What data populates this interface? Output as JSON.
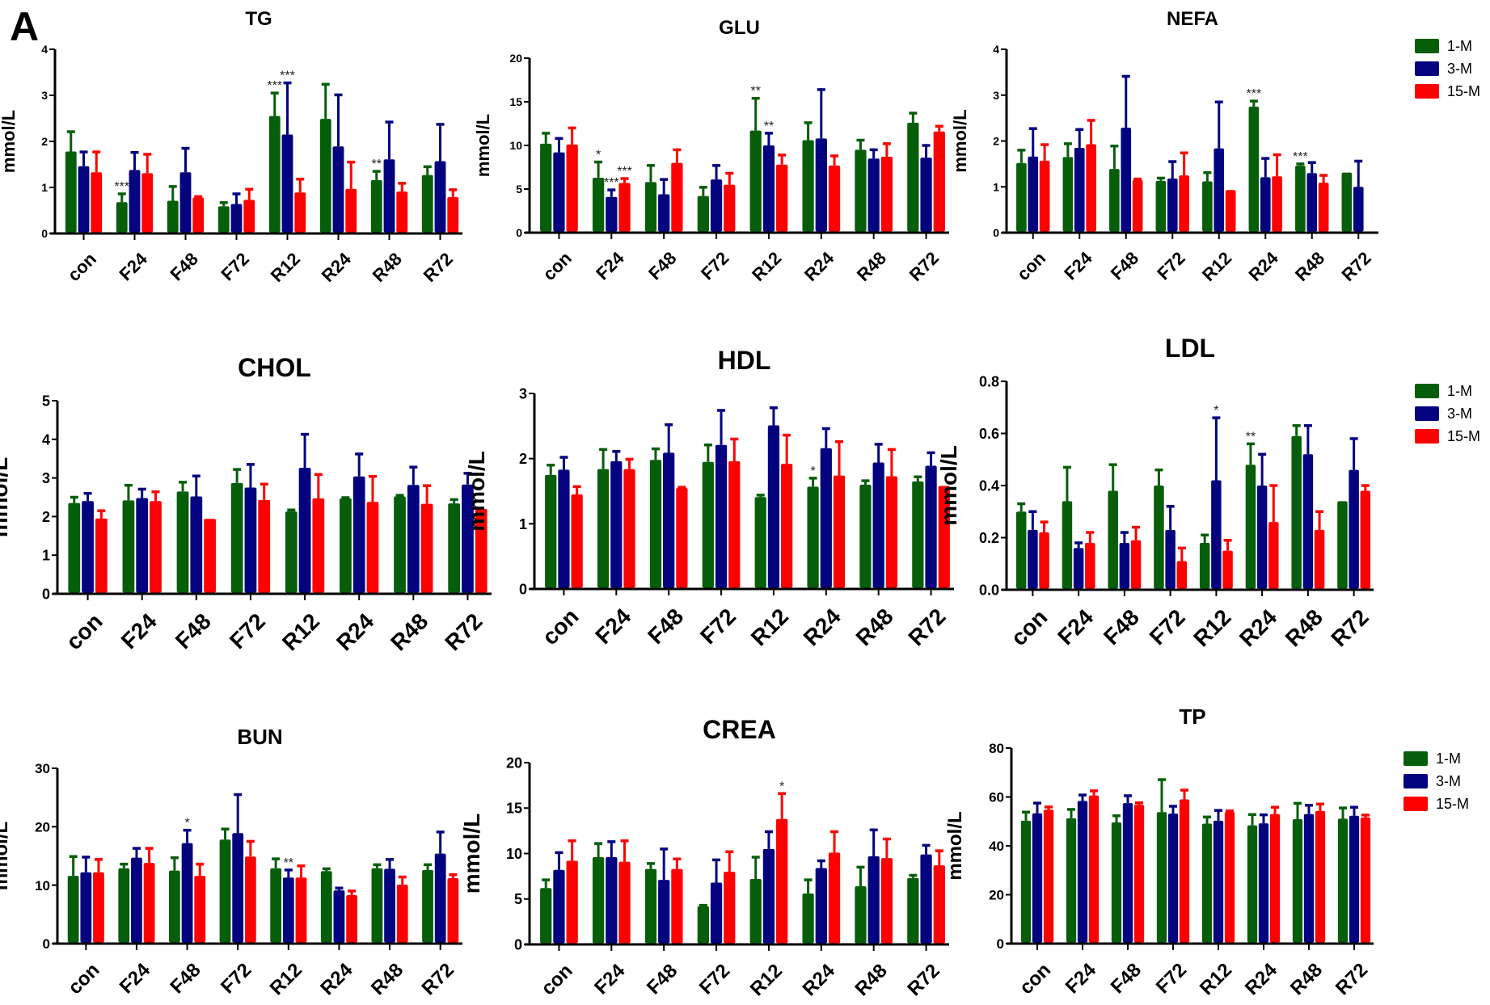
{
  "figure": {
    "panel_label": "A",
    "legend": [
      {
        "label": "1-M",
        "color": "#065e0b"
      },
      {
        "label": "3-M",
        "color": "#03037f"
      },
      {
        "label": "15-M",
        "color": "#fe0000"
      }
    ]
  },
  "chart_data": [
    {
      "type": "bar",
      "title": "TG",
      "ylabel": "mmol/L",
      "xlabel": "",
      "ylim": [
        0,
        4
      ],
      "yticks": [
        0,
        1,
        2,
        3,
        4
      ],
      "categories": [
        "con",
        "F24",
        "F48",
        "F72",
        "R12",
        "R24",
        "R48",
        "R72"
      ],
      "series": [
        {
          "name": "1-M",
          "values": [
            1.78,
            0.68,
            0.71,
            0.59,
            2.55,
            2.49,
            1.16,
            1.27
          ],
          "errors": [
            0.43,
            0.18,
            0.31,
            0.08,
            0.5,
            0.75,
            0.19,
            0.18
          ]
        },
        {
          "name": "3-M",
          "values": [
            1.46,
            1.38,
            1.33,
            0.64,
            2.15,
            1.89,
            1.61,
            1.57
          ],
          "errors": [
            0.31,
            0.38,
            0.52,
            0.22,
            1.12,
            1.12,
            0.81,
            0.8
          ]
        },
        {
          "name": "15-M",
          "values": [
            1.33,
            1.31,
            0.78,
            0.73,
            0.89,
            0.97,
            0.91,
            0.79
          ],
          "errors": [
            0.44,
            0.41,
            0.02,
            0.23,
            0.29,
            0.58,
            0.18,
            0.16
          ]
        }
      ],
      "annotations": [
        {
          "category": "F24",
          "series": "1-M",
          "text": "***"
        },
        {
          "category": "R12",
          "series": "1-M",
          "text": "***"
        },
        {
          "category": "R12",
          "series": "3-M",
          "text": "***"
        },
        {
          "category": "R48",
          "series": "1-M",
          "text": "**"
        }
      ],
      "legend": false
    },
    {
      "type": "bar",
      "title": "GLU",
      "ylabel": "mmol/L",
      "xlabel": "",
      "ylim": [
        0,
        20
      ],
      "yticks": [
        0,
        5,
        10,
        15,
        20
      ],
      "categories": [
        "con",
        "F24",
        "F48",
        "F72",
        "R12",
        "R24",
        "R48",
        "R72"
      ],
      "series": [
        {
          "name": "1-M",
          "values": [
            10.2,
            6.3,
            5.8,
            4.2,
            11.7,
            10.6,
            9.5,
            12.6
          ],
          "errors": [
            1.2,
            1.8,
            1.9,
            1.0,
            3.7,
            2.0,
            1.1,
            1.1
          ]
        },
        {
          "name": "3-M",
          "values": [
            9.2,
            4.1,
            4.4,
            6.1,
            10.0,
            10.8,
            8.5,
            8.6
          ],
          "errors": [
            1.6,
            0.8,
            1.7,
            1.6,
            1.4,
            5.6,
            1.0,
            1.4
          ]
        },
        {
          "name": "15-M",
          "values": [
            10.1,
            5.7,
            8.0,
            5.5,
            7.8,
            7.7,
            8.7,
            11.6
          ],
          "errors": [
            1.9,
            0.5,
            1.5,
            1.3,
            1.1,
            1.1,
            1.5,
            0.6
          ]
        }
      ],
      "annotations": [
        {
          "category": "F24",
          "series": "1-M",
          "text": "*"
        },
        {
          "category": "F24",
          "series": "3-M",
          "text": "***"
        },
        {
          "category": "F24",
          "series": "15-M",
          "text": "***"
        },
        {
          "category": "R12",
          "series": "1-M",
          "text": "**"
        },
        {
          "category": "R12",
          "series": "3-M",
          "text": "**"
        }
      ],
      "legend": false
    },
    {
      "type": "bar",
      "title": "NEFA",
      "ylabel": "mmol/L",
      "xlabel": "",
      "ylim": [
        0,
        4
      ],
      "yticks": [
        0,
        1,
        2,
        3,
        4
      ],
      "categories": [
        "con",
        "F24",
        "F48",
        "F72",
        "R12",
        "R24",
        "R48",
        "R72"
      ],
      "series": [
        {
          "name": "1-M",
          "values": [
            1.52,
            1.65,
            1.39,
            1.13,
            1.12,
            2.75,
            1.46,
            1.31
          ],
          "errors": [
            0.28,
            0.29,
            0.5,
            0.06,
            0.19,
            0.12,
            0.04,
            0.0
          ]
        },
        {
          "name": "3-M",
          "values": [
            1.66,
            1.85,
            2.29,
            1.18,
            1.84,
            1.21,
            1.3,
            1.0
          ],
          "errors": [
            0.61,
            0.4,
            1.12,
            0.37,
            1.01,
            0.41,
            0.23,
            0.56
          ]
        },
        {
          "name": "15-M",
          "values": [
            1.57,
            1.93,
            1.15,
            1.25,
            0.93,
            1.23,
            1.09,
            null
          ],
          "errors": [
            0.35,
            0.52,
            0.02,
            0.49,
            0.0,
            0.47,
            0.16,
            null
          ]
        }
      ],
      "annotations": [
        {
          "category": "R24",
          "series": "1-M",
          "text": "***"
        },
        {
          "category": "R48",
          "series": "1-M",
          "text": "***"
        }
      ],
      "legend": true
    },
    {
      "type": "bar",
      "title": "CHOL",
      "ylabel": "mmol/L",
      "xlabel": "",
      "ylim": [
        0,
        5
      ],
      "yticks": [
        0,
        1,
        2,
        3,
        4,
        5
      ],
      "categories": [
        "con",
        "F24",
        "F48",
        "F72",
        "R12",
        "R24",
        "R48",
        "R72"
      ],
      "series": [
        {
          "name": "1-M",
          "values": [
            2.35,
            2.42,
            2.65,
            2.87,
            2.13,
            2.47,
            2.52,
            2.34
          ],
          "errors": [
            0.15,
            0.39,
            0.24,
            0.35,
            0.04,
            0.02,
            0.03,
            0.1
          ]
        },
        {
          "name": "3-M",
          "values": [
            2.4,
            2.48,
            2.52,
            2.75,
            3.26,
            3.04,
            2.82,
            2.83
          ],
          "errors": [
            0.2,
            0.23,
            0.53,
            0.6,
            0.87,
            0.58,
            0.46,
            0.29
          ]
        },
        {
          "name": "15-M",
          "values": [
            1.95,
            2.4,
            1.94,
            2.43,
            2.47,
            2.38,
            2.33,
            2.2
          ],
          "errors": [
            0.2,
            0.24,
            0.0,
            0.41,
            0.62,
            0.66,
            0.47,
            0.0
          ]
        }
      ],
      "annotations": [],
      "legend": false
    },
    {
      "type": "bar",
      "title": "HDL",
      "ylabel": "mmol/L",
      "xlabel": "",
      "ylim": [
        0,
        3
      ],
      "yticks": [
        0,
        1,
        2,
        3
      ],
      "categories": [
        "con",
        "F24",
        "F48",
        "F72",
        "R12",
        "R24",
        "R48",
        "R72"
      ],
      "series": [
        {
          "name": "1-M",
          "values": [
            1.75,
            1.84,
            1.98,
            1.95,
            1.41,
            1.57,
            1.6,
            1.65
          ],
          "errors": [
            0.15,
            0.3,
            0.17,
            0.26,
            0.03,
            0.13,
            0.06,
            0.07
          ]
        },
        {
          "name": "3-M",
          "values": [
            1.83,
            1.96,
            2.09,
            2.21,
            2.51,
            2.16,
            1.94,
            1.89
          ],
          "errors": [
            0.19,
            0.15,
            0.43,
            0.53,
            0.27,
            0.3,
            0.28,
            0.2
          ]
        },
        {
          "name": "15-M",
          "values": [
            1.45,
            1.84,
            1.55,
            1.96,
            1.92,
            1.74,
            1.73,
            1.58
          ],
          "errors": [
            0.12,
            0.15,
            0.01,
            0.34,
            0.44,
            0.52,
            0.41,
            0.0
          ]
        }
      ],
      "annotations": [
        {
          "category": "R24",
          "series": "1-M",
          "text": "*"
        }
      ],
      "legend": false
    },
    {
      "type": "bar",
      "title": "LDL",
      "ylabel": "mmol/L",
      "xlabel": "",
      "ylim": [
        0,
        0.8
      ],
      "yticks": [
        0.0,
        0.2,
        0.4,
        0.6,
        0.8
      ],
      "categories": [
        "con",
        "F24",
        "F48",
        "F72",
        "R12",
        "R24",
        "R48",
        "R72"
      ],
      "series": [
        {
          "name": "1-M",
          "values": [
            0.3,
            0.34,
            0.38,
            0.4,
            0.18,
            0.48,
            0.59,
            0.34
          ],
          "errors": [
            0.03,
            0.13,
            0.1,
            0.06,
            0.03,
            0.08,
            0.04,
            0.0
          ]
        },
        {
          "name": "3-M",
          "values": [
            0.23,
            0.16,
            0.18,
            0.23,
            0.42,
            0.4,
            0.52,
            0.46
          ],
          "errors": [
            0.07,
            0.02,
            0.04,
            0.09,
            0.24,
            0.12,
            0.11,
            0.12
          ]
        },
        {
          "name": "15-M",
          "values": [
            0.22,
            0.18,
            0.19,
            0.11,
            0.15,
            0.26,
            0.23,
            0.38
          ],
          "errors": [
            0.04,
            0.04,
            0.05,
            0.05,
            0.04,
            0.14,
            0.07,
            0.02
          ]
        }
      ],
      "annotations": [
        {
          "category": "R12",
          "series": "3-M",
          "text": "*"
        },
        {
          "category": "R24",
          "series": "1-M",
          "text": "**"
        }
      ],
      "legend": true
    },
    {
      "type": "bar",
      "title": "BUN",
      "ylabel": "mmol/L",
      "xlabel": "",
      "ylim": [
        0,
        30
      ],
      "yticks": [
        0,
        10,
        20,
        30
      ],
      "categories": [
        "con",
        "F24",
        "F48",
        "F72",
        "R12",
        "R24",
        "R48",
        "R72"
      ],
      "series": [
        {
          "name": "1-M",
          "values": [
            11.6,
            12.9,
            12.5,
            17.8,
            12.9,
            12.4,
            12.9,
            12.6
          ],
          "errors": [
            3.3,
            0.7,
            2.2,
            1.8,
            1.6,
            0.4,
            0.6,
            0.9
          ]
        },
        {
          "name": "3-M",
          "values": [
            12.2,
            14.7,
            17.2,
            18.9,
            11.3,
            9.1,
            12.8,
            15.4
          ],
          "errors": [
            2.6,
            1.6,
            2.2,
            6.6,
            1.3,
            0.4,
            1.6,
            3.7
          ]
        },
        {
          "name": "15-M",
          "values": [
            12.2,
            13.8,
            11.6,
            14.9,
            11.3,
            8.3,
            10.1,
            11.2
          ],
          "errors": [
            2.2,
            2.5,
            2.0,
            2.6,
            2.0,
            0.7,
            1.3,
            0.6
          ]
        }
      ],
      "annotations": [
        {
          "category": "F48",
          "series": "3-M",
          "text": "*"
        },
        {
          "category": "R12",
          "series": "3-M",
          "text": "**"
        }
      ],
      "legend": false
    },
    {
      "type": "bar",
      "title": "CREA",
      "ylabel": "mmol/L",
      "xlabel": "",
      "ylim": [
        0,
        20
      ],
      "yticks": [
        0,
        5,
        10,
        15,
        20
      ],
      "categories": [
        "con",
        "F24",
        "F48",
        "F72",
        "R12",
        "R24",
        "R48",
        "R72"
      ],
      "series": [
        {
          "name": "1-M",
          "values": [
            6.2,
            9.6,
            8.3,
            4.2,
            7.2,
            5.6,
            6.4,
            7.3
          ],
          "errors": [
            0.9,
            1.5,
            0.6,
            0.1,
            2.4,
            1.5,
            2.1,
            0.3
          ]
        },
        {
          "name": "3-M",
          "values": [
            8.2,
            9.6,
            7.1,
            6.8,
            10.5,
            8.4,
            9.7,
            9.9
          ],
          "errors": [
            1.9,
            1.7,
            3.4,
            2.5,
            1.9,
            0.8,
            2.9,
            1.0
          ]
        },
        {
          "name": "15-M",
          "values": [
            9.2,
            9.1,
            8.3,
            8.0,
            13.8,
            10.1,
            9.5,
            8.7
          ],
          "errors": [
            2.2,
            2.3,
            1.1,
            2.2,
            2.8,
            2.3,
            2.1,
            1.6
          ]
        }
      ],
      "annotations": [
        {
          "category": "R12",
          "series": "15-M",
          "text": "*"
        }
      ],
      "legend": false
    },
    {
      "type": "bar",
      "title": "TP",
      "ylabel": "mmol/L",
      "xlabel": "",
      "ylim": [
        0,
        80
      ],
      "yticks": [
        0,
        20,
        40,
        60,
        80
      ],
      "categories": [
        "con",
        "F24",
        "F48",
        "F72",
        "R12",
        "R24",
        "R48",
        "R72"
      ],
      "series": [
        {
          "name": "1-M",
          "values": [
            50.3,
            51.3,
            49.6,
            53.8,
            49.1,
            48.4,
            50.9,
            51.1
          ],
          "errors": [
            3.5,
            3.6,
            2.7,
            13.3,
            2.7,
            4.4,
            6.5,
            4.4
          ]
        },
        {
          "name": "3-M",
          "values": [
            53.3,
            58.4,
            57.5,
            53.2,
            50.3,
            49.2,
            53.0,
            52.3
          ],
          "errors": [
            4.2,
            2.4,
            3.0,
            3.0,
            4.2,
            3.5,
            3.6,
            3.5
          ]
        },
        {
          "name": "15-M",
          "values": [
            54.8,
            60.6,
            56.8,
            59.0,
            53.9,
            53.0,
            54.3,
            51.6
          ],
          "errors": [
            1.1,
            1.9,
            0.8,
            3.8,
            0.4,
            2.8,
            2.8,
            1.0
          ]
        }
      ],
      "annotations": [],
      "legend": true
    }
  ]
}
